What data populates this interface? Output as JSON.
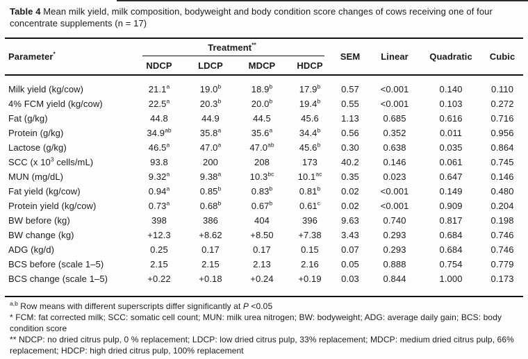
{
  "caption": {
    "parts": [
      {
        "b": "Table 4"
      },
      " Mean milk yield, milk composition, bodyweight and body condition score changes of cows receiving one of four concentrate supplements (n = 17)"
    ]
  },
  "table": {
    "header": {
      "parameter": [
        "Parameter",
        {
          "sup": "*"
        }
      ],
      "treatment": [
        "Treatment",
        {
          "sup": "**"
        }
      ],
      "treatment_cols": [
        "NDCP",
        "LDCP",
        "MDCP",
        "HDCP"
      ],
      "stat_cols": [
        "SEM",
        "Linear",
        "Quadratic",
        "Cubic"
      ]
    },
    "rows": [
      {
        "param": [
          "Milk yield (kg/cow)"
        ],
        "cells": [
          {
            "v": "21.1",
            "sup": "a"
          },
          {
            "v": "19.0",
            "sup": "b"
          },
          {
            "v": "18.9",
            "sup": "b"
          },
          {
            "v": "17.9",
            "sup": "b"
          },
          {
            "v": "0.57"
          },
          {
            "v": "<0.001"
          },
          {
            "v": "0.140"
          },
          {
            "v": "0.110"
          }
        ]
      },
      {
        "param": [
          "4% FCM yield (kg/cow)"
        ],
        "cells": [
          {
            "v": "22.5",
            "sup": "a"
          },
          {
            "v": "20.3",
            "sup": "b"
          },
          {
            "v": "20.0",
            "sup": "b"
          },
          {
            "v": "19.4",
            "sup": "b"
          },
          {
            "v": "0.55"
          },
          {
            "v": "<0.001"
          },
          {
            "v": "0.103"
          },
          {
            "v": "0.272"
          }
        ]
      },
      {
        "param": [
          "Fat (g/kg)"
        ],
        "cells": [
          {
            "v": "44.8"
          },
          {
            "v": "44.9"
          },
          {
            "v": "44.5"
          },
          {
            "v": "45.6"
          },
          {
            "v": "1.13"
          },
          {
            "v": "0.685"
          },
          {
            "v": "0.616"
          },
          {
            "v": "0.716"
          }
        ]
      },
      {
        "param": [
          "Protein (g/kg)"
        ],
        "cells": [
          {
            "v": "34.9",
            "sup": "ab"
          },
          {
            "v": "35.8",
            "sup": "a"
          },
          {
            "v": "35.6",
            "sup": "a"
          },
          {
            "v": "34.4",
            "sup": "b"
          },
          {
            "v": "0.56"
          },
          {
            "v": "0.352"
          },
          {
            "v": "0.011"
          },
          {
            "v": "0.956"
          }
        ]
      },
      {
        "param": [
          "Lactose (g/kg)"
        ],
        "cells": [
          {
            "v": "46.5",
            "sup": "a"
          },
          {
            "v": "47.0",
            "sup": "a"
          },
          {
            "v": "47.0",
            "sup": "ab"
          },
          {
            "v": "45.6",
            "sup": "b"
          },
          {
            "v": "0.30"
          },
          {
            "v": "0.638"
          },
          {
            "v": "0.035"
          },
          {
            "v": "0.864"
          }
        ]
      },
      {
        "param": [
          "SCC (x 10",
          {
            "sup": "3"
          },
          " cells/mL)"
        ],
        "cells": [
          {
            "v": "93.8"
          },
          {
            "v": "200"
          },
          {
            "v": "208"
          },
          {
            "v": "173"
          },
          {
            "v": "40.2"
          },
          {
            "v": "0.146"
          },
          {
            "v": "0.061"
          },
          {
            "v": "0.745"
          }
        ]
      },
      {
        "param": [
          "MUN (mg/dL)"
        ],
        "cells": [
          {
            "v": "9.32",
            "sup": "a"
          },
          {
            "v": "9.38",
            "sup": "a"
          },
          {
            "v": "10.3",
            "sup": "bc"
          },
          {
            "v": "10.1",
            "sup": "ac"
          },
          {
            "v": "0.35"
          },
          {
            "v": "0.023"
          },
          {
            "v": "0.647"
          },
          {
            "v": "0.146"
          }
        ]
      },
      {
        "param": [
          "Fat yield (kg/cow)"
        ],
        "cells": [
          {
            "v": "0.94",
            "sup": "a"
          },
          {
            "v": "0.85",
            "sup": "b"
          },
          {
            "v": "0.83",
            "sup": "b"
          },
          {
            "v": "0.81",
            "sup": "b"
          },
          {
            "v": "0.02"
          },
          {
            "v": "<0.001"
          },
          {
            "v": "0.149"
          },
          {
            "v": "0.480"
          }
        ]
      },
      {
        "param": [
          "Protein yield (kg/cow)"
        ],
        "cells": [
          {
            "v": "0.73",
            "sup": "a"
          },
          {
            "v": "0.68",
            "sup": "b"
          },
          {
            "v": "0.67",
            "sup": "b"
          },
          {
            "v": "0.61",
            "sup": "c"
          },
          {
            "v": "0.02"
          },
          {
            "v": "<0.001"
          },
          {
            "v": "0.909"
          },
          {
            "v": "0.204"
          }
        ]
      },
      {
        "param": [
          "BW before (kg)"
        ],
        "cells": [
          {
            "v": "398"
          },
          {
            "v": "386"
          },
          {
            "v": "404"
          },
          {
            "v": "396"
          },
          {
            "v": "9.63"
          },
          {
            "v": "0.740"
          },
          {
            "v": "0.817"
          },
          {
            "v": "0.198"
          }
        ]
      },
      {
        "param": [
          "BW change (kg)"
        ],
        "cells": [
          {
            "v": "+12.3"
          },
          {
            "v": "+8.62"
          },
          {
            "v": "+8.50"
          },
          {
            "v": "+7.38"
          },
          {
            "v": "3.43"
          },
          {
            "v": "0.293"
          },
          {
            "v": "0.684"
          },
          {
            "v": "0.746"
          }
        ]
      },
      {
        "param": [
          "ADG (kg/d)"
        ],
        "cells": [
          {
            "v": "0.25"
          },
          {
            "v": "0.17"
          },
          {
            "v": "0.17"
          },
          {
            "v": "0.15"
          },
          {
            "v": "0.07"
          },
          {
            "v": "0.293"
          },
          {
            "v": "0.684"
          },
          {
            "v": "0.746"
          }
        ]
      },
      {
        "param": [
          "BCS before (scale 1–5)"
        ],
        "cells": [
          {
            "v": "2.15"
          },
          {
            "v": "2.15"
          },
          {
            "v": "2.13"
          },
          {
            "v": "2.16"
          },
          {
            "v": "0.05"
          },
          {
            "v": "0.888"
          },
          {
            "v": "0.754"
          },
          {
            "v": "0.779"
          }
        ]
      },
      {
        "param": [
          "BCS change (scale 1–5)"
        ],
        "cells": [
          {
            "v": "+0.22"
          },
          {
            "v": "+0.18"
          },
          {
            "v": "+0.24"
          },
          {
            "v": "+0.19"
          },
          {
            "v": "0.03"
          },
          {
            "v": "0.844"
          },
          {
            "v": "1.000"
          },
          {
            "v": "0.173"
          }
        ]
      }
    ]
  },
  "footnotes": [
    [
      {
        "sup": "a,b"
      },
      " Row means with different superscripts differ significantly at ",
      {
        "i": "P"
      },
      " <0.05"
    ],
    [
      "* FCM: fat corrected milk; SCC: somatic cell count; MUN: milk urea nitrogen; BW: bodyweight; ADG: average daily gain; BCS: body condition score"
    ],
    [
      "** NDCP: no dried citrus pulp, 0 % replacement; LDCP: low dried citrus pulp, 33% replacement; MDCP: medium dried citrus pulp, 66% replacement; HDCP: high dried citrus pulp, 100% replacement"
    ]
  ]
}
